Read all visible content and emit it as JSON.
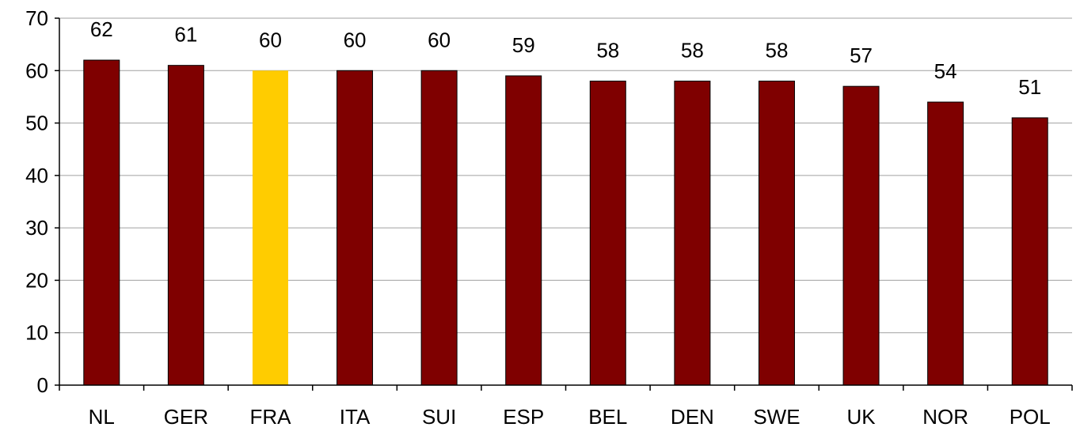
{
  "chart_data": {
    "type": "bar",
    "title": "",
    "xlabel": "",
    "ylabel": "",
    "categories": [
      "NL",
      "GER",
      "FRA",
      "ITA",
      "SUI",
      "ESP",
      "BEL",
      "DEN",
      "SWE",
      "UK",
      "NOR",
      "POL"
    ],
    "values": [
      62,
      61,
      60,
      60,
      60,
      59,
      58,
      58,
      58,
      57,
      54,
      51
    ],
    "data_labels": [
      "62",
      "61",
      "60",
      "60",
      "60",
      "59",
      "58",
      "58",
      "58",
      "57",
      "54",
      "51"
    ],
    "ylim": [
      0,
      70
    ],
    "yticks": [
      0,
      10,
      20,
      30,
      40,
      50,
      60,
      70
    ],
    "grid": true,
    "legend": "none",
    "colors": {
      "bar": "#7f0000",
      "highlight": "#ffcc00",
      "highlight_category": "FRA",
      "grid": "#a0a0a0",
      "axis": "#000000"
    }
  }
}
